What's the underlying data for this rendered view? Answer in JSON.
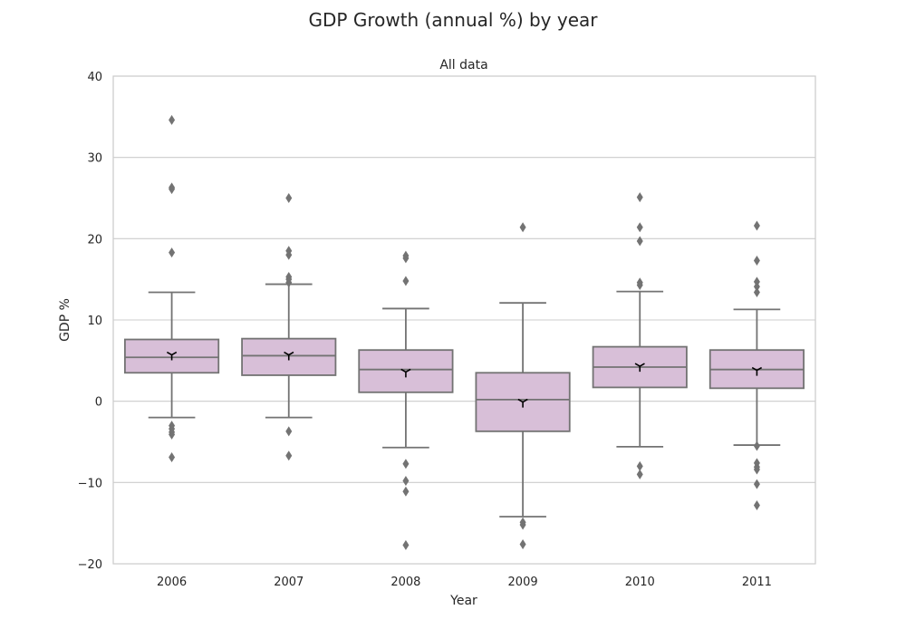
{
  "figure": {
    "title": "GDP Growth (annual %) by year",
    "subplot_title": "All data"
  },
  "chart_data": {
    "type": "box",
    "title": "GDP Growth (annual %) by year",
    "subtitle": "All data",
    "xlabel": "Year",
    "ylabel": "GDP %",
    "ylim": [
      -20,
      40
    ],
    "yticks": [
      -20,
      -10,
      0,
      10,
      20,
      30,
      40
    ],
    "grid": "horizontal",
    "box_color": "#d8bfd8",
    "line_color": "#737373",
    "mean_marker_color": "#000000",
    "categories": [
      "2006",
      "2007",
      "2008",
      "2009",
      "2010",
      "2011"
    ],
    "boxes": [
      {
        "label": "2006",
        "whislo": -2.0,
        "q1": 3.5,
        "med": 5.4,
        "q3": 7.6,
        "whishi": 13.4,
        "mean": 5.7,
        "fliers": [
          34.6,
          26.3,
          26.1,
          18.3,
          -3.0,
          -3.4,
          -3.8,
          -4.1,
          -6.9
        ]
      },
      {
        "label": "2007",
        "whislo": -2.0,
        "q1": 3.2,
        "med": 5.6,
        "q3": 7.7,
        "whishi": 14.4,
        "mean": 5.7,
        "fliers": [
          25.0,
          18.5,
          18.0,
          15.3,
          15.0,
          14.6,
          -3.7,
          -6.7
        ]
      },
      {
        "label": "2008",
        "whislo": -5.7,
        "q1": 1.1,
        "med": 3.9,
        "q3": 6.3,
        "whishi": 11.4,
        "mean": 3.6,
        "fliers": [
          17.9,
          17.6,
          14.8,
          -7.7,
          -9.8,
          -11.1,
          -17.7
        ]
      },
      {
        "label": "2009",
        "whislo": -14.2,
        "q1": -3.7,
        "med": 0.2,
        "q3": 3.5,
        "whishi": 12.1,
        "mean": -0.1,
        "fliers": [
          21.4,
          -14.9,
          -15.2,
          -17.6
        ]
      },
      {
        "label": "2010",
        "whislo": -5.6,
        "q1": 1.7,
        "med": 4.2,
        "q3": 6.7,
        "whishi": 13.5,
        "mean": 4.3,
        "fliers": [
          25.1,
          21.4,
          19.7,
          14.6,
          14.3,
          -8.0,
          -9.0
        ]
      },
      {
        "label": "2011",
        "whislo": -5.4,
        "q1": 1.6,
        "med": 3.9,
        "q3": 6.3,
        "whishi": 11.3,
        "mean": 3.8,
        "fliers": [
          21.6,
          17.3,
          14.7,
          14.1,
          13.4,
          -5.5,
          -7.6,
          -8.1,
          -8.4,
          -10.2,
          -12.8
        ]
      }
    ]
  }
}
